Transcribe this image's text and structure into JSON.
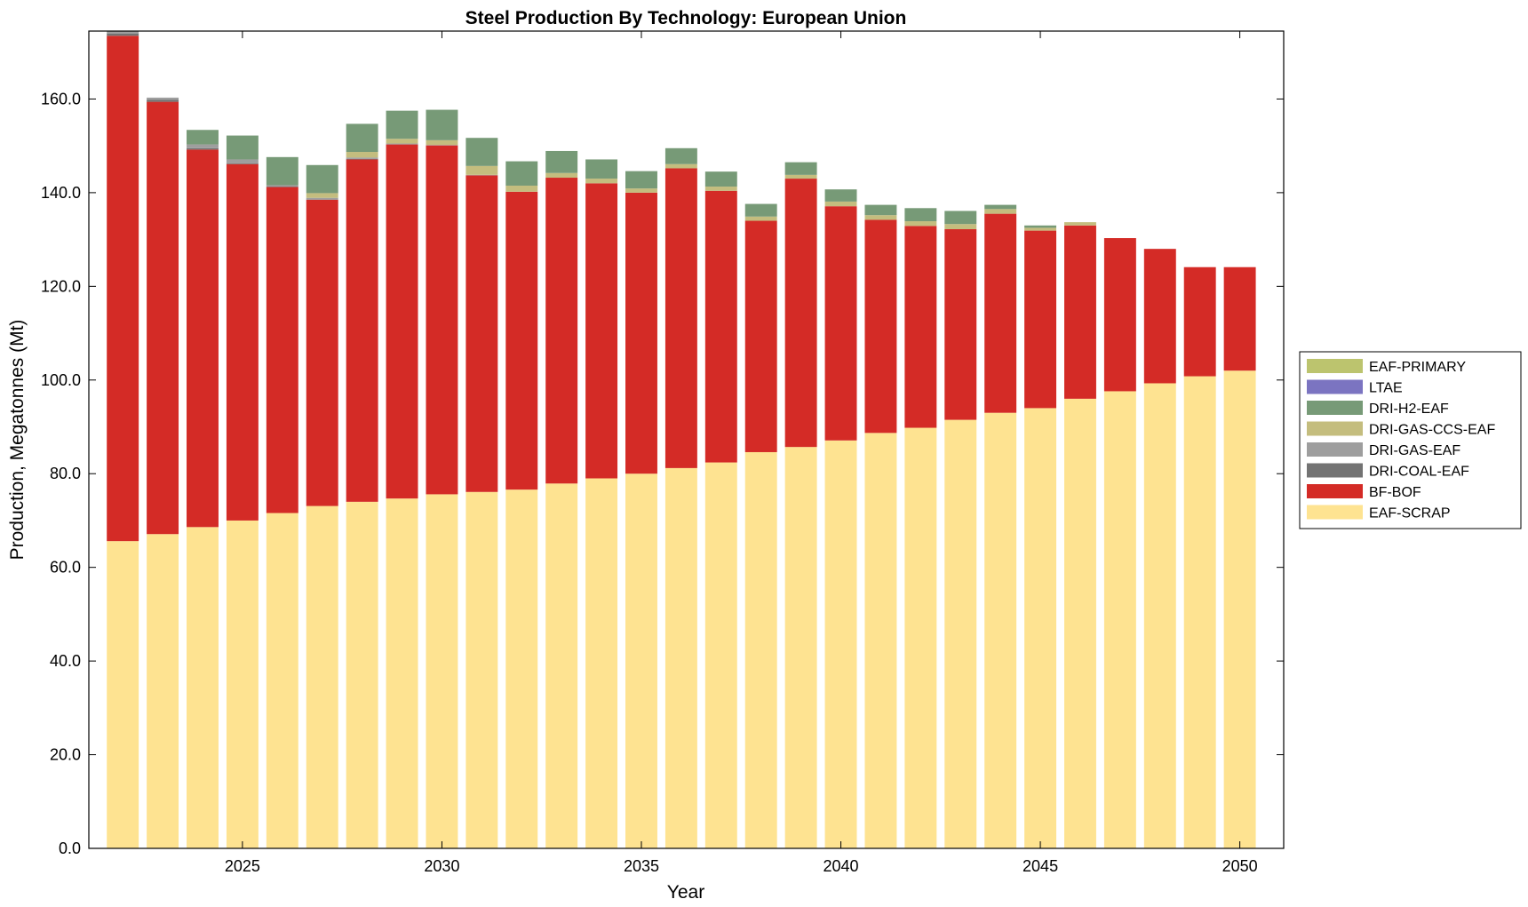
{
  "chart_data": {
    "type": "bar",
    "stacked": true,
    "title": "Steel Production By Technology: European Union",
    "xlabel": "Year",
    "ylabel": "Production, Megatonnes (Mt)",
    "xlim": [
      2021.15,
      2051.1
    ],
    "ylim": [
      0,
      174.5
    ],
    "xticks": [
      2025,
      2030,
      2035,
      2040,
      2045,
      2050
    ],
    "xtick_labels": [
      "2025",
      "2030",
      "2035",
      "2040",
      "2045",
      "2050"
    ],
    "yticks": [
      0,
      20,
      40,
      60,
      80,
      100,
      120,
      140,
      160
    ],
    "ytick_labels": [
      "0.0",
      "20.0",
      "40.0",
      "60.0",
      "80.0",
      "100.0",
      "120.0",
      "140.0",
      "160.0"
    ],
    "grid": false,
    "legend_position": "outside-right",
    "x": [
      2022,
      2023,
      2024,
      2025,
      2026,
      2027,
      2028,
      2029,
      2030,
      2031,
      2032,
      2033,
      2034,
      2035,
      2036,
      2037,
      2038,
      2039,
      2040,
      2041,
      2042,
      2043,
      2044,
      2045,
      2046,
      2047,
      2048,
      2049,
      2050
    ],
    "series": [
      {
        "name": "EAF-SCRAP",
        "color": "#fee391",
        "values": [
          65.6,
          67.1,
          68.6,
          70.0,
          71.6,
          73.1,
          74.0,
          74.7,
          75.6,
          76.1,
          76.6,
          77.9,
          79.0,
          80.0,
          81.2,
          82.4,
          84.6,
          85.7,
          87.1,
          88.7,
          89.8,
          91.5,
          93.0,
          94.0,
          96.0,
          97.6,
          99.3,
          100.8,
          102.0
        ]
      },
      {
        "name": "BF-BOF",
        "color": "#d42b26",
        "values": [
          107.9,
          92.3,
          80.6,
          76.1,
          69.6,
          65.4,
          73.1,
          75.6,
          74.5,
          67.6,
          63.6,
          65.3,
          63.0,
          60.0,
          64.0,
          58.0,
          49.4,
          57.3,
          50.0,
          45.5,
          43.1,
          40.7,
          42.5,
          37.9,
          37.0,
          32.7,
          28.7,
          23.3,
          22.1
        ]
      },
      {
        "name": "DRI-COAL-EAF",
        "color": "#737373",
        "values": [
          0.5,
          0.4,
          0.3,
          0.2,
          0.1,
          0.1,
          0.1,
          0,
          0,
          0,
          0,
          0,
          0,
          0,
          0,
          0,
          0,
          0,
          0,
          0,
          0,
          0,
          0,
          0,
          0,
          0,
          0,
          0,
          0
        ]
      },
      {
        "name": "DRI-GAS-EAF",
        "color": "#9e9e9e",
        "values": [
          0.5,
          0.5,
          0.8,
          0.8,
          0.3,
          0.3,
          0.3,
          0.2,
          0.1,
          0.1,
          0,
          0,
          0,
          0,
          0,
          0,
          0,
          0,
          0,
          0,
          0,
          0,
          0,
          0,
          0,
          0,
          0,
          0,
          0
        ]
      },
      {
        "name": "DRI-GAS-CCS-EAF",
        "color": "#c4bd7e",
        "values": [
          0,
          0,
          0,
          0,
          0,
          1.0,
          1.2,
          1.0,
          1.0,
          1.9,
          1.3,
          1.0,
          1.0,
          0.9,
          0.9,
          0.9,
          0.9,
          0.8,
          1.0,
          1.0,
          1.0,
          1.1,
          1.0,
          0.6,
          0.7,
          0,
          0,
          0,
          0
        ]
      },
      {
        "name": "DRI-H2-EAF",
        "color": "#779a77",
        "values": [
          0,
          0,
          3.1,
          5.1,
          6.0,
          6.0,
          6.0,
          6.0,
          6.5,
          6.0,
          5.2,
          4.7,
          4.1,
          3.7,
          3.4,
          3.2,
          2.7,
          2.7,
          2.6,
          2.2,
          2.8,
          2.8,
          0.9,
          0.5,
          0,
          0,
          0,
          0,
          0
        ]
      },
      {
        "name": "LTAE",
        "color": "#7b74c1",
        "values": [
          0,
          0,
          0,
          0,
          0,
          0,
          0,
          0,
          0,
          0,
          0,
          0,
          0,
          0,
          0,
          0,
          0,
          0,
          0,
          0,
          0,
          0,
          0,
          0,
          0,
          0,
          0,
          0,
          0
        ]
      },
      {
        "name": "EAF-PRIMARY",
        "color": "#bcc46e",
        "values": [
          0,
          0,
          0,
          0,
          0,
          0,
          0,
          0,
          0,
          0,
          0,
          0,
          0,
          0,
          0,
          0,
          0,
          0,
          0,
          0,
          0,
          0,
          0,
          0,
          0,
          0,
          0,
          0,
          0
        ]
      }
    ],
    "legend_order": [
      "EAF-PRIMARY",
      "LTAE",
      "DRI-H2-EAF",
      "DRI-GAS-CCS-EAF",
      "DRI-GAS-EAF",
      "DRI-COAL-EAF",
      "BF-BOF",
      "EAF-SCRAP"
    ]
  }
}
